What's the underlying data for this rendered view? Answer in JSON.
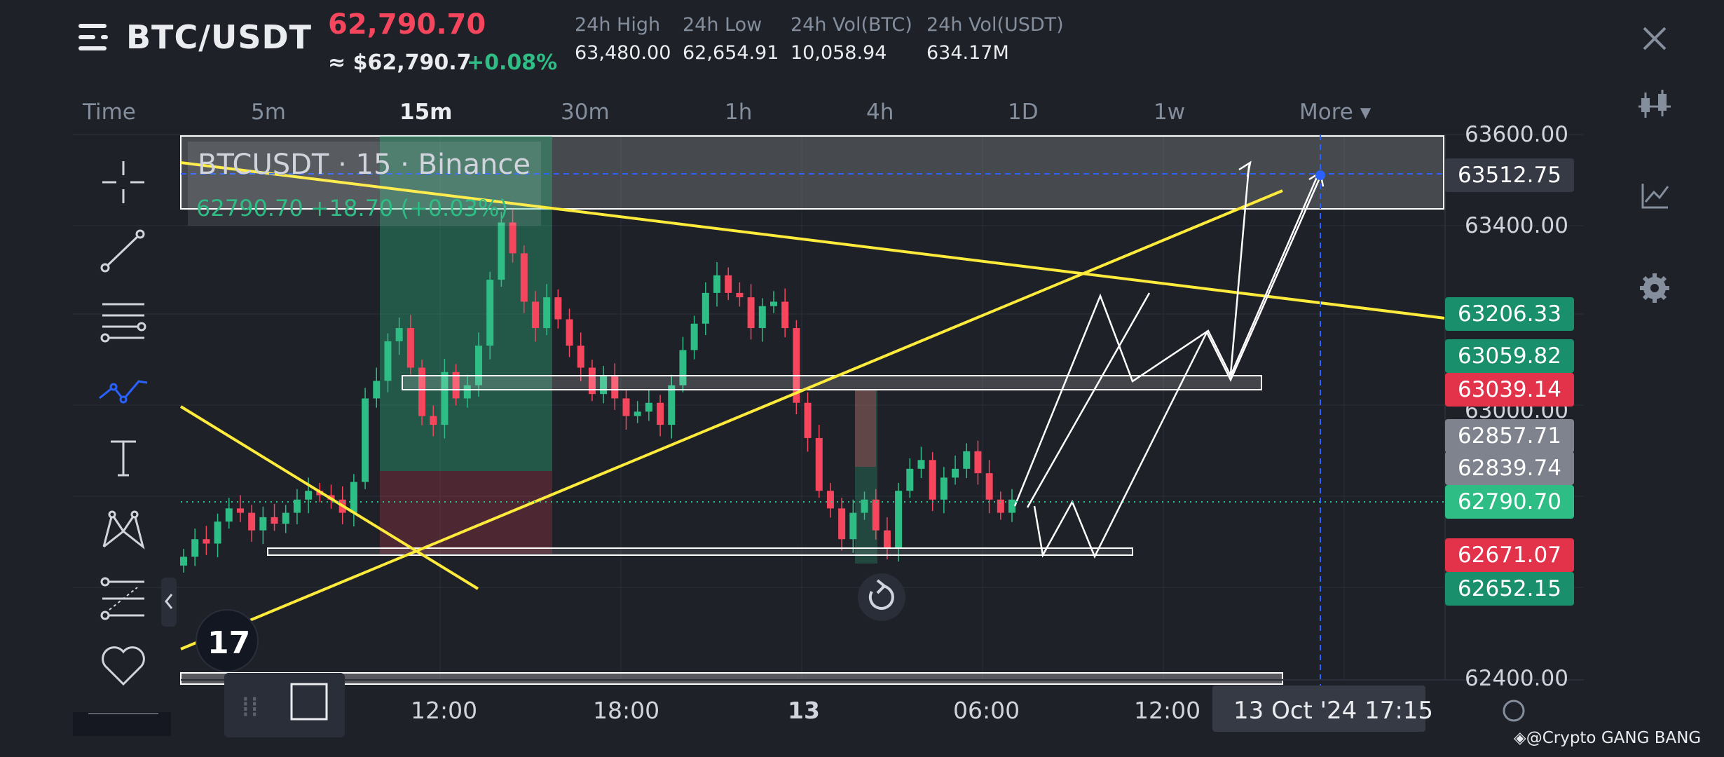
{
  "header": {
    "pair": "BTC/USDT",
    "last_price": "62,790.70",
    "usd_equiv": "≈ $62,790.7",
    "change": "+0.08%",
    "stats": [
      {
        "label": "24h High",
        "value": "63,480.00"
      },
      {
        "label": "24h Low",
        "value": "62,654.91"
      },
      {
        "label": "24h Vol(BTC)",
        "value": "10,058.94"
      },
      {
        "label": "24h Vol(USDT)",
        "value": "634.17M"
      }
    ]
  },
  "intervals": {
    "time_label": "Time",
    "items": [
      "5m",
      "15m",
      "30m",
      "1h",
      "4h",
      "1D",
      "1w"
    ],
    "active": "15m",
    "more_label": "More ▾"
  },
  "chart": {
    "legend_title": "BTCUSDT · 15 · Binance",
    "legend_values": "62790.70  +18.70 (+0.03%)",
    "watermark": "◈@Crypto GANG BANG",
    "crosshair_time": "13 Oct '24   17:15",
    "colors": {
      "up": "#2ebd85",
      "down": "#f6465d",
      "trendline": "#ffeb3b",
      "background": "#1e2128"
    }
  },
  "chart_data": {
    "type": "candlestick",
    "symbol": "BTCUSDT",
    "interval": "15",
    "exchange": "Binance",
    "x_ticks": [
      "12:00",
      "18:00",
      "13",
      "06:00",
      "12:00"
    ],
    "y_ticks": [
      63600.0,
      63400.0,
      63000.0,
      62400.0
    ],
    "ylim": [
      62380,
      63620
    ],
    "price_badges": [
      {
        "value": "63512.75",
        "color": "#363a45"
      },
      {
        "value": "63206.33",
        "color": "#1a8f6c"
      },
      {
        "value": "63059.82",
        "color": "#1a8f6c"
      },
      {
        "value": "63039.14",
        "color": "#e2334a"
      },
      {
        "value": "62857.71",
        "color": "#7e838d"
      },
      {
        "value": "62839.74",
        "color": "#7e838d"
      },
      {
        "value": "62790.70",
        "color": "#2ebd85"
      },
      {
        "value": "62671.07",
        "color": "#e2334a"
      },
      {
        "value": "62652.15",
        "color": "#1a8f6c"
      }
    ],
    "candles_close": [
      62660,
      62700,
      62690,
      62740,
      62770,
      62760,
      62720,
      62750,
      62735,
      62760,
      62790,
      62810,
      62800,
      62790,
      62760,
      62830,
      63020,
      63060,
      63150,
      63180,
      63090,
      62980,
      62960,
      63080,
      63020,
      63050,
      63140,
      63290,
      63420,
      63350,
      63240,
      63180,
      63250,
      63200,
      63140,
      63090,
      63030,
      63070,
      63020,
      62980,
      62990,
      63010,
      62960,
      63050,
      63130,
      63190,
      63260,
      63300,
      63260,
      63250,
      63180,
      63230,
      63240,
      63180,
      63010,
      62930,
      62810,
      62770,
      62700,
      62760,
      62790,
      62720,
      62680,
      62810,
      62860,
      62880,
      62790,
      62840,
      62860,
      62900,
      62850,
      62790,
      62760,
      62790
    ]
  },
  "toolbar": {
    "tools": [
      "crosshair-icon",
      "trendline-icon",
      "fib-icon",
      "path-icon",
      "text-icon",
      "pattern-icon",
      "ruler-icon",
      "favorite-icon"
    ]
  },
  "sidebar_right": [
    "close-icon",
    "candle-type-icon",
    "indicator-icon",
    "settings-icon"
  ]
}
